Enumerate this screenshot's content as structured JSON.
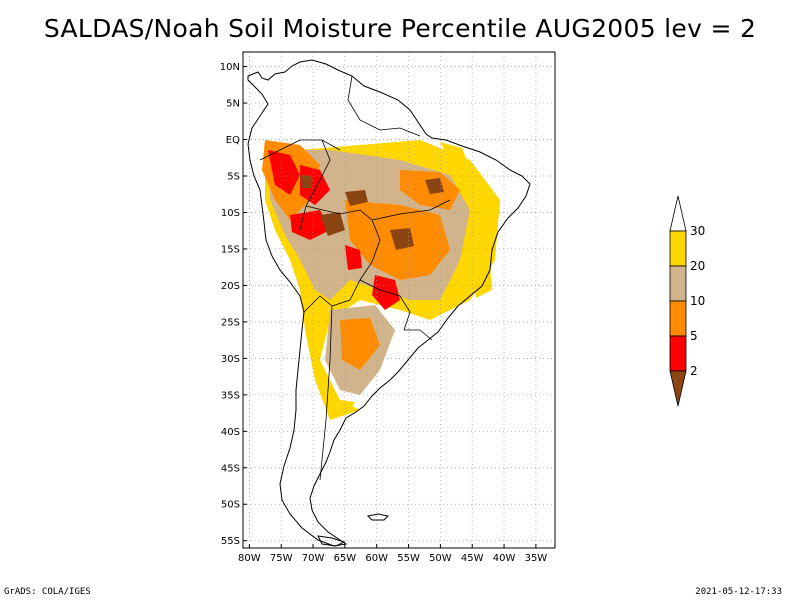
{
  "title": "SALDAS/Noah Soil Moisture Percentile AUG2005 lev = 2",
  "footer": {
    "left": "GrADS: COLA/IGES",
    "right": "2021-05-12-17:33"
  },
  "map": {
    "lon_range": [
      -81,
      -32
    ],
    "lat_range": [
      -56,
      12
    ],
    "lat_ticks": [
      {
        "v": 10,
        "label": "10N"
      },
      {
        "v": 5,
        "label": "5N"
      },
      {
        "v": 0,
        "label": "EQ"
      },
      {
        "v": -5,
        "label": "5S"
      },
      {
        "v": -10,
        "label": "10S"
      },
      {
        "v": -15,
        "label": "15S"
      },
      {
        "v": -20,
        "label": "20S"
      },
      {
        "v": -25,
        "label": "25S"
      },
      {
        "v": -30,
        "label": "30S"
      },
      {
        "v": -35,
        "label": "35S"
      },
      {
        "v": -40,
        "label": "40S"
      },
      {
        "v": -45,
        "label": "45S"
      },
      {
        "v": -50,
        "label": "50S"
      },
      {
        "v": -55,
        "label": "55S"
      }
    ],
    "lon_ticks": [
      {
        "v": -80,
        "label": "80W"
      },
      {
        "v": -75,
        "label": "75W"
      },
      {
        "v": -70,
        "label": "70W"
      },
      {
        "v": -65,
        "label": "65W"
      },
      {
        "v": -60,
        "label": "60W"
      },
      {
        "v": -55,
        "label": "55W"
      },
      {
        "v": -50,
        "label": "50W"
      },
      {
        "v": -45,
        "label": "45W"
      },
      {
        "v": -40,
        "label": "40W"
      },
      {
        "v": -35,
        "label": "35W"
      }
    ],
    "grid": "dotted",
    "legend": {
      "placement": "right",
      "labels": [
        "2",
        "5",
        "10",
        "20",
        "30"
      ],
      "colors": [
        "#8b4513",
        "#ff0000",
        "#ff8c00",
        "#d2b48c",
        "#ffd700",
        "#ffffff"
      ]
    }
  }
}
